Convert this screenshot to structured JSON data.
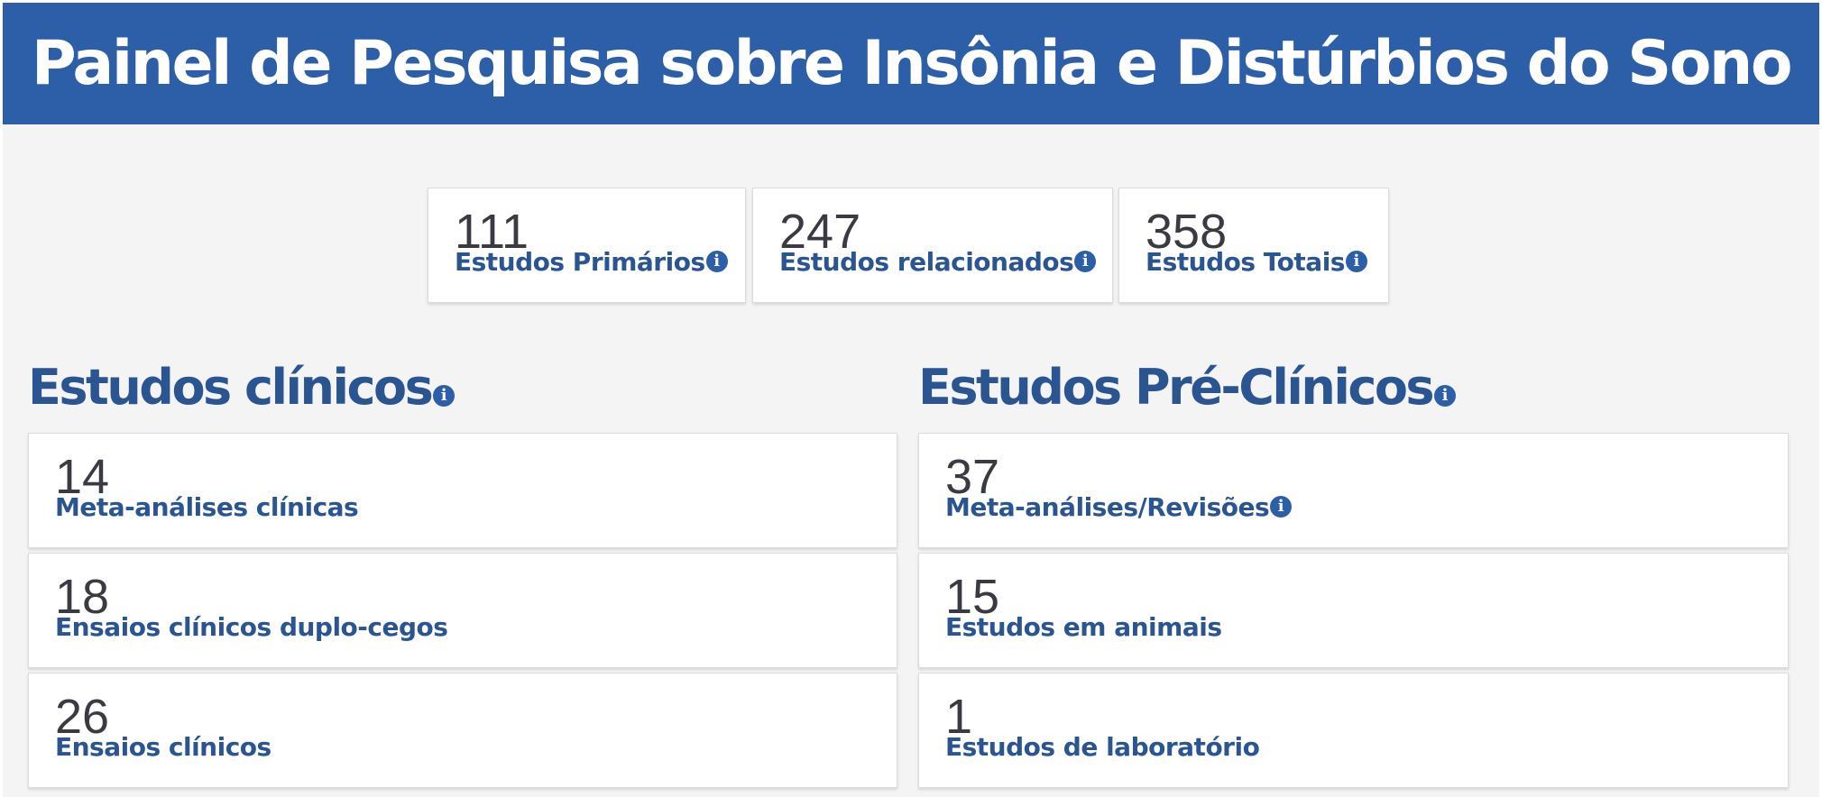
{
  "header": {
    "title": "Painel de Pesquisa sobre Insônia e Distúrbios do Sono"
  },
  "summary": [
    {
      "value": "111",
      "label": "Estudos Primários"
    },
    {
      "value": "247",
      "label": "Estudos relacionados"
    },
    {
      "value": "358",
      "label": "Estudos Totais"
    }
  ],
  "clinical": {
    "title": "Estudos clínicos",
    "items": [
      {
        "value": "14",
        "label": "Meta-análises clínicas"
      },
      {
        "value": "18",
        "label": "Ensaios clínicos duplo-cegos"
      },
      {
        "value": "26",
        "label": "Ensaios clínicos"
      }
    ]
  },
  "preclinical": {
    "title": "Estudos Pré-Clínicos",
    "items": [
      {
        "value": "37",
        "label": "Meta-análises/Revisões"
      },
      {
        "value": "15",
        "label": "Estudos em animais"
      },
      {
        "value": "1",
        "label": "Estudos de laboratório"
      }
    ]
  },
  "icons": {
    "info": "info-icon",
    "info_glyph": "i"
  },
  "colors": {
    "header_bg": "#2d5ea8",
    "accent_text": "#2a5591",
    "number_text": "#3a3a42",
    "page_bg": "#f4f4f4"
  }
}
